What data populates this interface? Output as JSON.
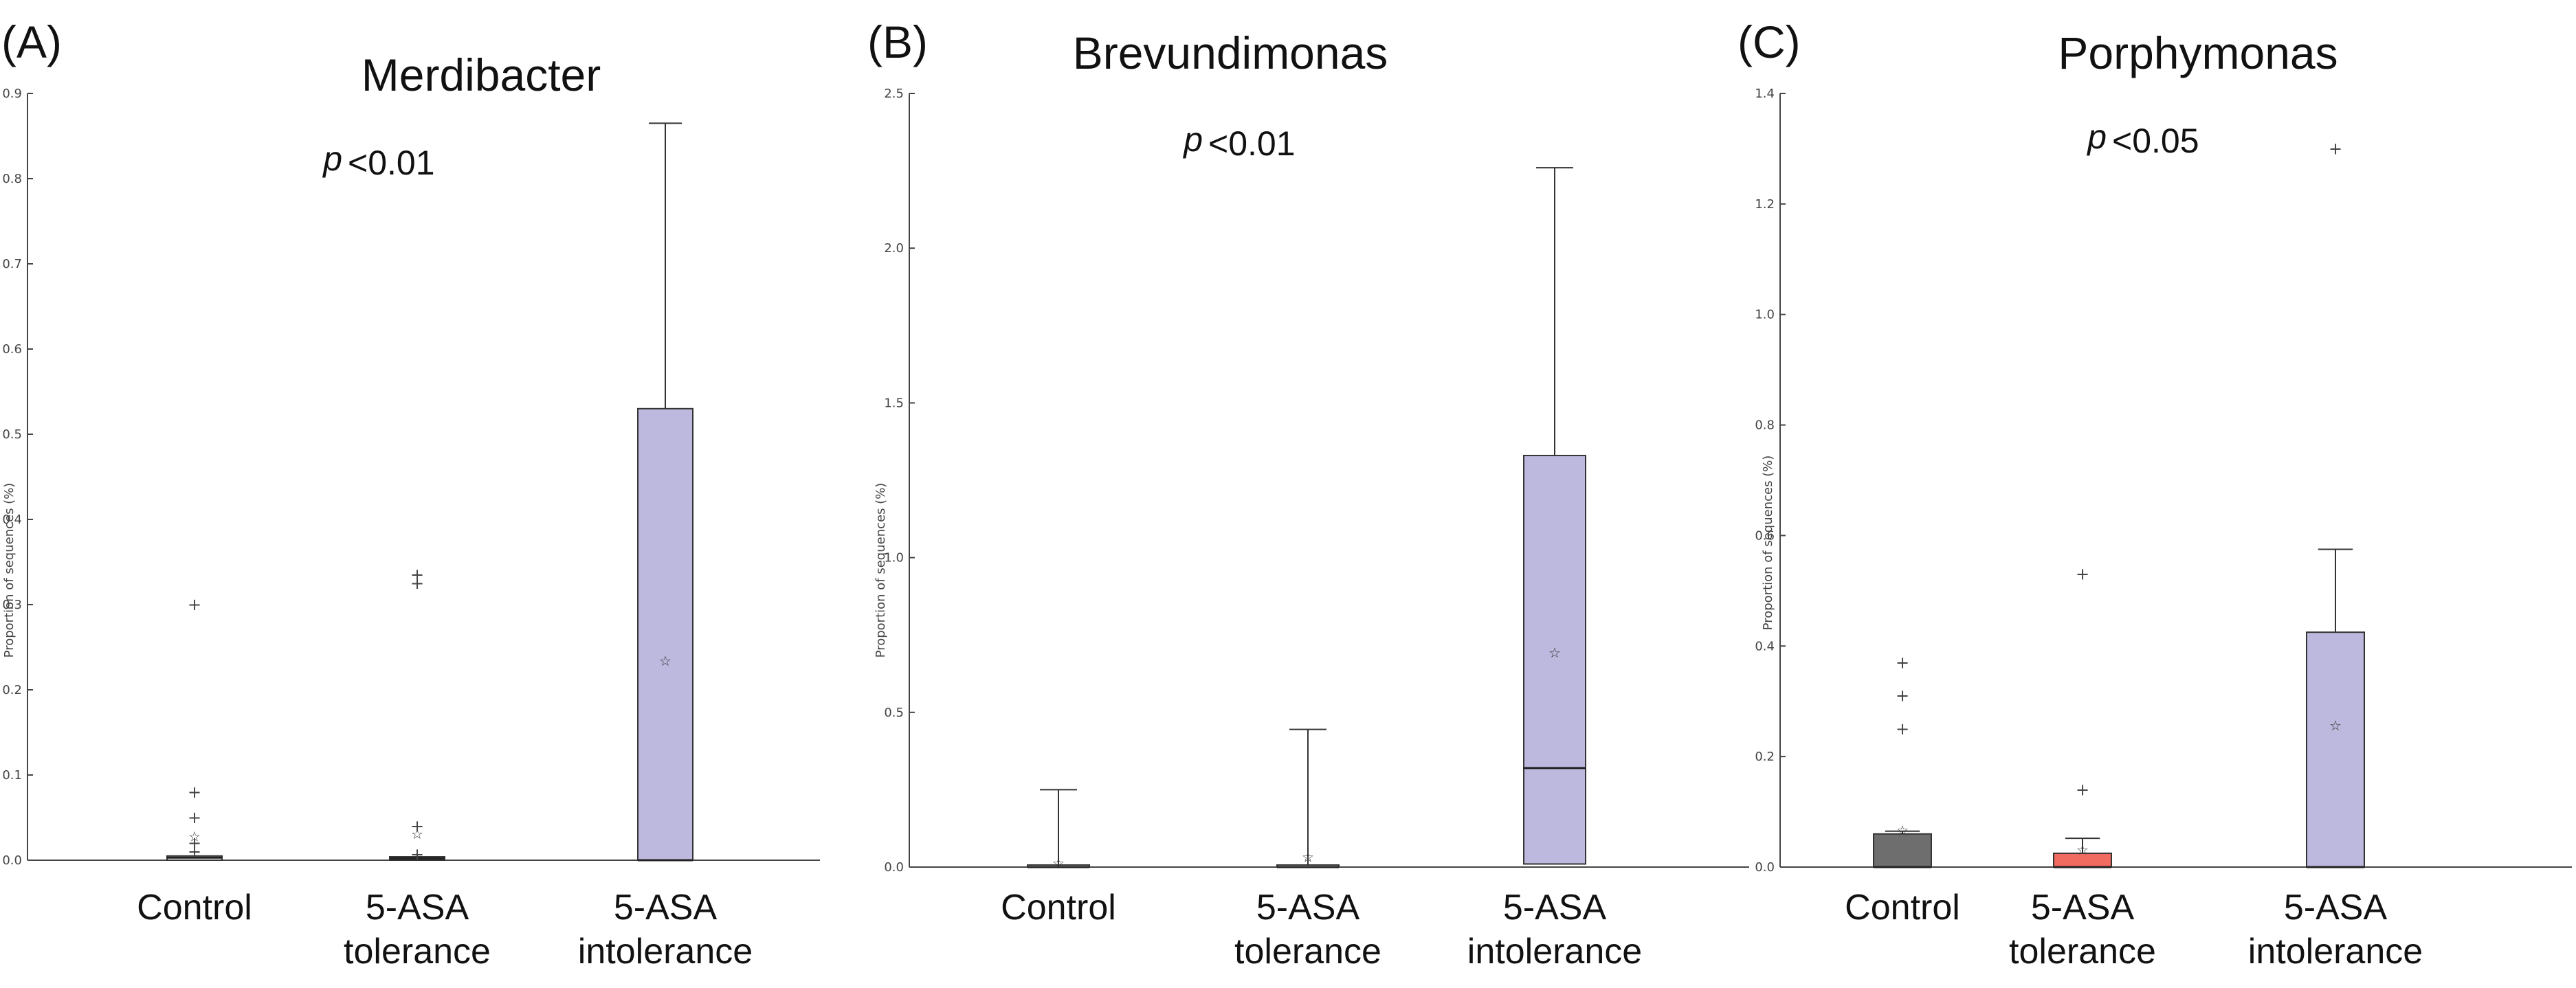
{
  "chart_data": [
    {
      "type": "box",
      "panel_label": "(A)",
      "title": "Merdibacter",
      "p_symbol": "p",
      "p_value": "<0.01",
      "ylabel": "Proportion of sequences (%)",
      "ylim": [
        0,
        0.9
      ],
      "yticks": [
        "0.0",
        "0.1",
        "0.2",
        "0.3",
        "0.4",
        "0.5",
        "0.6",
        "0.7",
        "0.8",
        "0.9"
      ],
      "categories": [
        {
          "lines": [
            "Control"
          ],
          "q1": 0,
          "median": 0.003,
          "q3": 0.005,
          "whisker_low": 0,
          "whisker_high": 0.005,
          "mean": 0.027,
          "outliers": [
            0.3,
            0.08,
            0.05,
            0.02,
            0.01
          ],
          "color": "#ffffff"
        },
        {
          "lines": [
            "5-ASA",
            "tolerance"
          ],
          "q1": 0,
          "median": 0.002,
          "q3": 0.004,
          "whisker_low": 0,
          "whisker_high": 0.004,
          "mean": 0.03,
          "outliers": [
            0.335,
            0.325,
            0.04,
            0.007
          ],
          "color": "#ffffff"
        },
        {
          "lines": [
            "5-ASA",
            "intolerance"
          ],
          "q1": 0,
          "median": 0,
          "q3": 0.53,
          "whisker_low": 0,
          "whisker_high": 0.865,
          "mean": 0.233,
          "outliers": [],
          "color": "#bdb8dd"
        }
      ]
    },
    {
      "type": "box",
      "panel_label": "(B)",
      "title": "Brevundimonas",
      "p_symbol": "p",
      "p_value": "<0.01",
      "ylabel": "Proportion of sequences (%)",
      "ylim": [
        0,
        2.5
      ],
      "yticks": [
        "0.0",
        "0.5",
        "1.0",
        "1.5",
        "2.0",
        "2.5"
      ],
      "categories": [
        {
          "lines": [
            "Control"
          ],
          "q1": 0,
          "median": 0,
          "q3": 0,
          "whisker_low": 0,
          "whisker_high": 0.25,
          "mean": 0.01,
          "outliers": [],
          "color": "#ffffff"
        },
        {
          "lines": [
            "5-ASA",
            "tolerance"
          ],
          "q1": 0,
          "median": 0,
          "q3": 0,
          "whisker_low": 0,
          "whisker_high": 0.445,
          "mean": 0.03,
          "outliers": [],
          "color": "#ffffff"
        },
        {
          "lines": [
            "5-ASA",
            "intolerance"
          ],
          "q1": 0.01,
          "median": 0.32,
          "q3": 1.33,
          "whisker_low": 0,
          "whisker_high": 2.26,
          "mean": 0.69,
          "outliers": [],
          "color": "#bdb8dd"
        }
      ]
    },
    {
      "type": "box",
      "panel_label": "(C)",
      "title": "Porphymonas",
      "p_symbol": "p",
      "p_value": "<0.05",
      "ylabel": "Proportion of sequences (%)",
      "ylim": [
        0,
        1.4
      ],
      "yticks": [
        "0.0",
        "0.2",
        "0.4",
        "0.6",
        "0.8",
        "1.0",
        "1.2",
        "1.4"
      ],
      "categories": [
        {
          "lines": [
            "Control"
          ],
          "q1": 0,
          "median": 0,
          "q3": 0.06,
          "whisker_low": 0,
          "whisker_high": 0.065,
          "mean": 0.065,
          "outliers": [
            0.37,
            0.31,
            0.25
          ],
          "color": "#6e6e6e"
        },
        {
          "lines": [
            "5-ASA",
            "tolerance"
          ],
          "q1": 0,
          "median": 0,
          "q3": 0.025,
          "whisker_low": 0,
          "whisker_high": 0.052,
          "mean": 0.03,
          "outliers": [
            0.53,
            0.14
          ],
          "color": "#f26b60"
        },
        {
          "lines": [
            "5-ASA",
            "intolerance"
          ],
          "q1": 0,
          "median": 0,
          "q3": 0.425,
          "whisker_low": 0,
          "whisker_high": 0.575,
          "mean": 0.255,
          "outliers": [
            1.3
          ],
          "color": "#bdb8dd"
        }
      ]
    }
  ]
}
